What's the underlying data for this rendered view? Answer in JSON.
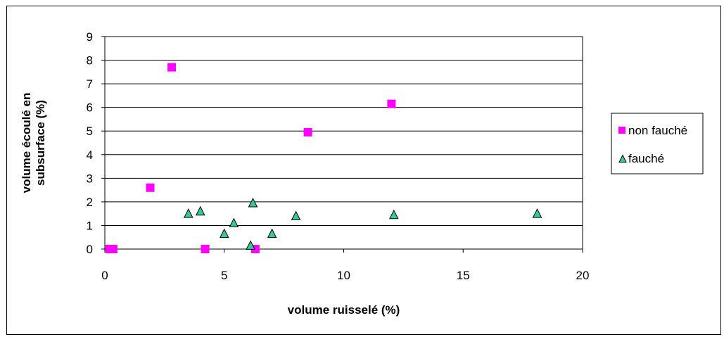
{
  "chart_data": {
    "type": "scatter",
    "title": "",
    "xlabel": "volume ruisselé (%)",
    "ylabel": "volume écoulé en subsurface (%)",
    "ylabel_lines": [
      "volume écoulé en",
      "subsurface (%)"
    ],
    "xlim": [
      0,
      20
    ],
    "ylim": [
      0,
      9
    ],
    "x_ticks": [
      "0",
      "5",
      "10",
      "15",
      "20"
    ],
    "y_ticks": [
      "0",
      "1",
      "2",
      "3",
      "4",
      "5",
      "6",
      "7",
      "8",
      "9"
    ],
    "grid": "horizontal",
    "legend_position": "right",
    "series": [
      {
        "name": "non fauché",
        "marker": "square",
        "color": "#ff00ff",
        "points": [
          {
            "x": 0.2,
            "y": 0.0
          },
          {
            "x": 0.35,
            "y": 0.0
          },
          {
            "x": 1.9,
            "y": 2.6
          },
          {
            "x": 2.8,
            "y": 7.7
          },
          {
            "x": 4.2,
            "y": 0.0
          },
          {
            "x": 6.3,
            "y": 0.0
          },
          {
            "x": 8.5,
            "y": 4.95
          },
          {
            "x": 12.0,
            "y": 6.15
          }
        ]
      },
      {
        "name": "fauché",
        "marker": "triangle",
        "color": "#33cc99",
        "points": [
          {
            "x": 3.5,
            "y": 1.5
          },
          {
            "x": 4.0,
            "y": 1.6
          },
          {
            "x": 5.0,
            "y": 0.65
          },
          {
            "x": 5.4,
            "y": 1.1
          },
          {
            "x": 6.1,
            "y": 0.15
          },
          {
            "x": 6.2,
            "y": 1.95
          },
          {
            "x": 7.0,
            "y": 0.65
          },
          {
            "x": 8.0,
            "y": 1.4
          },
          {
            "x": 12.1,
            "y": 1.45
          },
          {
            "x": 18.1,
            "y": 1.5
          }
        ]
      }
    ]
  }
}
